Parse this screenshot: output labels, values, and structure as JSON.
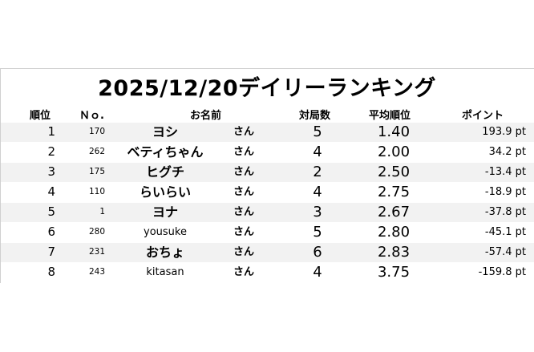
{
  "title": "2025/12/20デイリーランキング",
  "headers": {
    "rank": "順位",
    "no": "Ｎｏ.",
    "name": "お名前",
    "games": "対局数",
    "avg": "平均順位",
    "points": "ポイント"
  },
  "rows": [
    {
      "rank": "1",
      "no": "170",
      "name": "ヨシ",
      "suffix": "さん",
      "games": "5",
      "avg": "1.40",
      "points": "193.9 pt"
    },
    {
      "rank": "2",
      "no": "262",
      "name": "ベティちゃん",
      "suffix": "さん",
      "games": "4",
      "avg": "2.00",
      "points": "34.2 pt"
    },
    {
      "rank": "3",
      "no": "175",
      "name": "ヒグチ",
      "suffix": "さん",
      "games": "2",
      "avg": "2.50",
      "points": "-13.4 pt"
    },
    {
      "rank": "4",
      "no": "110",
      "name": "らいらい",
      "suffix": "さん",
      "games": "4",
      "avg": "2.75",
      "points": "-18.9 pt"
    },
    {
      "rank": "5",
      "no": "1",
      "name": "ヨナ",
      "suffix": "さん",
      "games": "3",
      "avg": "2.67",
      "points": "-37.8 pt"
    },
    {
      "rank": "6",
      "no": "280",
      "name": "yousuke",
      "suffix": "さん",
      "games": "5",
      "avg": "2.80",
      "points": "-45.1 pt"
    },
    {
      "rank": "7",
      "no": "231",
      "name": "おちょ",
      "suffix": "さん",
      "games": "6",
      "avg": "2.83",
      "points": "-57.4 pt"
    },
    {
      "rank": "8",
      "no": "243",
      "name": "kitasan",
      "suffix": "さん",
      "games": "4",
      "avg": "3.75",
      "points": "-159.8 pt"
    }
  ],
  "colors": {
    "stripe": "#f2f2f2",
    "text": "#000000"
  }
}
